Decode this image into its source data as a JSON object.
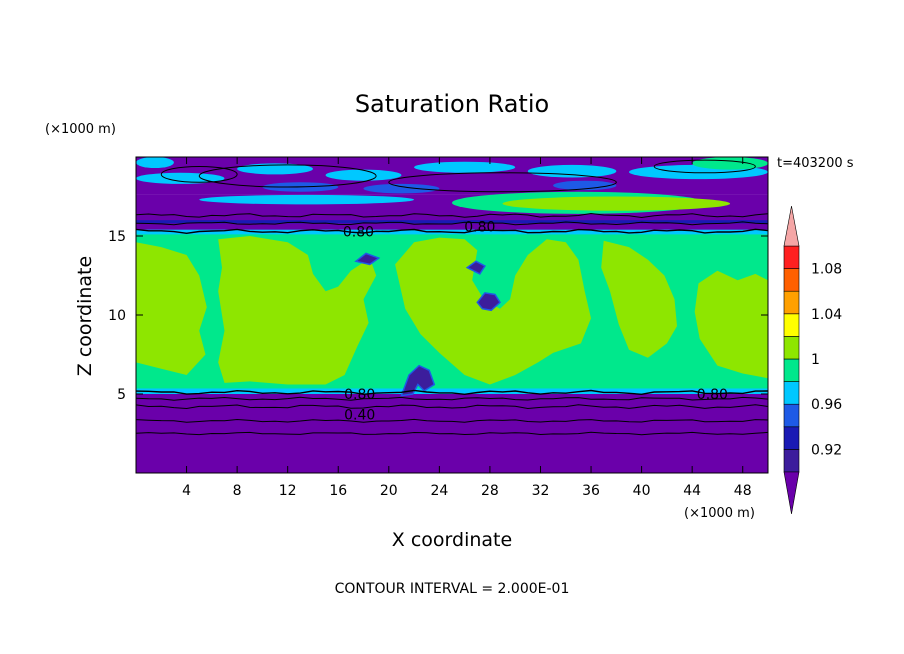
{
  "chart_data": {
    "type": "heatmap",
    "title": "Saturation Ratio",
    "time_label": "t=403200 s",
    "xlabel": "X coordinate",
    "ylabel": "Z coordinate",
    "x_unit": "(×1000 m)",
    "y_unit": "(×1000 m)",
    "xlim": [
      0,
      50
    ],
    "ylim": [
      0,
      20
    ],
    "x_ticks": [
      4,
      8,
      12,
      16,
      20,
      24,
      28,
      32,
      36,
      40,
      44,
      48
    ],
    "y_ticks": [
      5,
      10,
      15
    ],
    "footer": "CONTOUR INTERVAL = 2.000E-01",
    "colorbar": {
      "labels": [
        "1.08",
        "1.04",
        "1",
        "0.96",
        "0.92"
      ],
      "levels": [
        0.9,
        0.92,
        0.94,
        0.96,
        0.98,
        1.0,
        1.02,
        1.04,
        1.06,
        1.08,
        1.1
      ],
      "colors": [
        "#3c1d9c",
        "#1a1ab4",
        "#1e5ae6",
        "#00c8ff",
        "#00e88c",
        "#8ee600",
        "#ffff00",
        "#ffa000",
        "#ff6000",
        "#ff2020"
      ],
      "under_color": "#6a00aa",
      "over_color": "#f5a6a6"
    },
    "contour_labels": [
      "0.80",
      "0.80",
      "0.80",
      "0.40",
      "0.80"
    ],
    "layers": [
      {
        "z_from": 0,
        "z_to": 5.1,
        "value": "< 0.9"
      },
      {
        "z_from": 5.1,
        "z_to": 15.3,
        "value": "0.96 to 1.02"
      },
      {
        "z_from": 15.3,
        "z_to": 17.5,
        "value": "< 0.9"
      },
      {
        "z_from": 17.5,
        "z_to": 20,
        "value": "mixed 0.9 to 1.0"
      }
    ]
  }
}
